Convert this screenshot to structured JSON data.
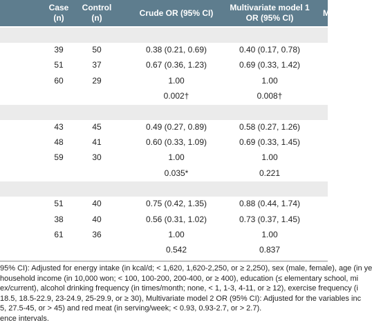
{
  "header": {
    "columns": [
      "Case\n(n)",
      "Control\n(n)",
      "Crude OR (95% CI)",
      "Multivariate model 1\nOR (95% CI)",
      "M"
    ]
  },
  "sections": [
    {
      "rows": [
        {
          "case": "39",
          "control": "50",
          "crude": "0.38 (0.21, 0.69)",
          "model1": "0.40 (0.17, 0.78)"
        },
        {
          "case": "51",
          "control": "37",
          "crude": "0.67 (0.36, 1.23)",
          "model1": "0.69 (0.33, 1.42)"
        },
        {
          "case": "60",
          "control": "29",
          "crude": "1.00",
          "model1": "1.00"
        },
        {
          "crude": "0.002†",
          "model1": "0.008†"
        }
      ]
    },
    {
      "rows": [
        {
          "case": "43",
          "control": "45",
          "crude": "0.49 (0.27, 0.89)",
          "model1": "0.58 (0.27, 1.26)"
        },
        {
          "case": "48",
          "control": "41",
          "crude": "0.60 (0.33, 1.09)",
          "model1": "0.69 (0.33, 1.45)"
        },
        {
          "case": "59",
          "control": "30",
          "crude": "1.00",
          "model1": "1.00"
        },
        {
          "crude": "0.035*",
          "model1": "0.221"
        }
      ]
    },
    {
      "rows": [
        {
          "case": "51",
          "control": "40",
          "crude": "0.75 (0.42, 1.35)",
          "model1": "0.88 (0.44, 1.74)"
        },
        {
          "case": "38",
          "control": "40",
          "crude": "0.56 (0.31, 1.02)",
          "model1": "0.73 (0.37, 1.45)"
        },
        {
          "case": "61",
          "control": "36",
          "crude": "1.00",
          "model1": "1.00"
        },
        {
          "crude": "0.542",
          "model1": "0.837"
        }
      ]
    }
  ],
  "footnotes": [
    "95% CI): Adjusted for energy intake (in kcal/d; < 1,620, 1,620-2,250, or ≥ 2,250), sex (male, female), age (in ye",
    "household income (in 10,000 won; < 100, 100-200, 200-400, or ≥ 400), education (≤ elementary school, mi",
    "ex/current), alcohol drinking frequency (in times/month; none, < 1, 1-3, 4-11, or ≥ 12), exercise frequency (i",
    "18.5, 18.5-22.9, 23-24.9, 25-29.9, or ≥ 30), Multivariate model 2 OR (95% CI): Adjusted for the variables inc",
    "5, 27.5-45, or > 45) and red meat (in serving/week; < 0.93, 0.93-2.7, or > 2.7).",
    "ence intervals."
  ]
}
